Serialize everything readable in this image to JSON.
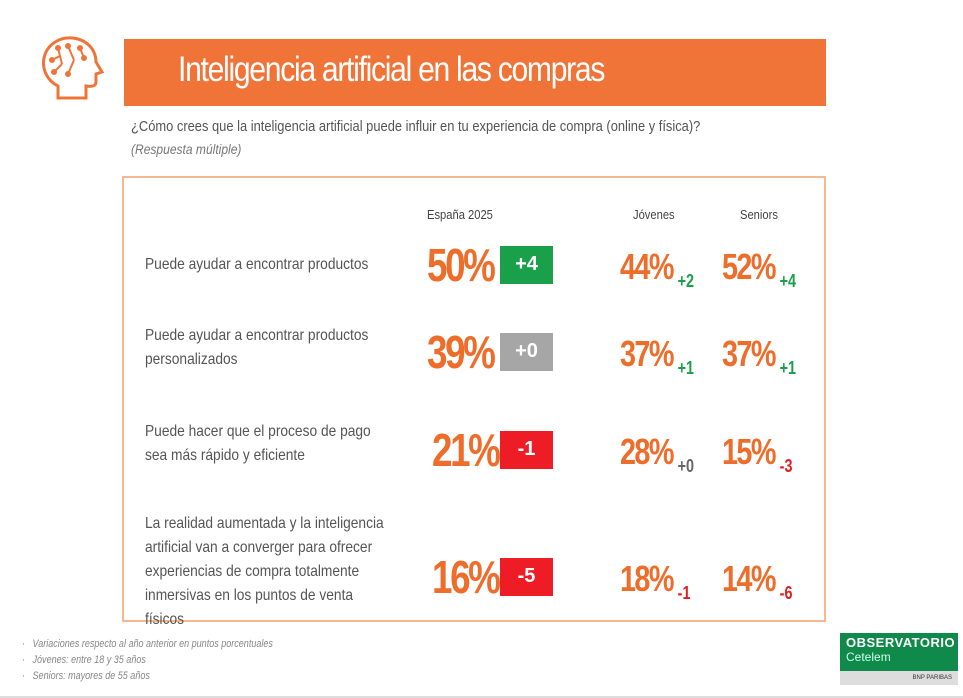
{
  "header": {
    "title": "Inteligencia artificial en las compras",
    "icon": "ai-head-icon"
  },
  "question": "¿Cómo crees que la inteligencia artificial puede influir en tu experiencia de compra (online y física)?",
  "note": "(Respuesta múltiple)",
  "columns": {
    "spain": "España 2025",
    "young": "Jóvenes",
    "seniors": "Seniors"
  },
  "colors": {
    "accent": "#ee6d2a",
    "title_bar": "#f07438",
    "up": "#1aa04a",
    "flat": "#a6a6a6",
    "down": "#ee1c25"
  },
  "rows": [
    {
      "label": "Puede ayudar a encontrar productos",
      "spain": "50%",
      "spain_delta": "+4",
      "spain_trend": "up",
      "young": "44%",
      "young_delta": "+2",
      "young_trend": "up",
      "seniors": "52%",
      "seniors_delta": "+4",
      "seniors_trend": "up"
    },
    {
      "label": "Puede ayudar a encontrar productos personalizados",
      "spain": "39%",
      "spain_delta": "+0",
      "spain_trend": "flat",
      "young": "37%",
      "young_delta": "+1",
      "young_trend": "up",
      "seniors": "37%",
      "seniors_delta": "+1",
      "seniors_trend": "up"
    },
    {
      "label": "Puede hacer que el proceso de pago sea más rápido y eficiente",
      "spain": "21%",
      "spain_delta": "-1",
      "spain_trend": "down",
      "young": "28%",
      "young_delta": "+0",
      "young_trend": "flat",
      "seniors": "15%",
      "seniors_delta": "-3",
      "seniors_trend": "down"
    },
    {
      "label": "La realidad aumentada y la inteligencia artificial van a converger para ofrecer experiencias de compra totalmente inmersivas en los puntos de venta físicos",
      "spain": "16%",
      "spain_delta": "-5",
      "spain_trend": "down",
      "young": "18%",
      "young_delta": "-1",
      "young_trend": "down",
      "seniors": "14%",
      "seniors_delta": "-6",
      "seniors_trend": "down"
    }
  ],
  "footnotes": [
    "Variaciones respecto al año anterior en puntos porcentuales",
    "Jóvenes: entre 18 y 35 años",
    "Seniors: mayores de 55 años"
  ],
  "logo": {
    "line1": "OBSERVATORIO",
    "line2": "Cetelem",
    "line3": "BNP PARIBAS"
  }
}
